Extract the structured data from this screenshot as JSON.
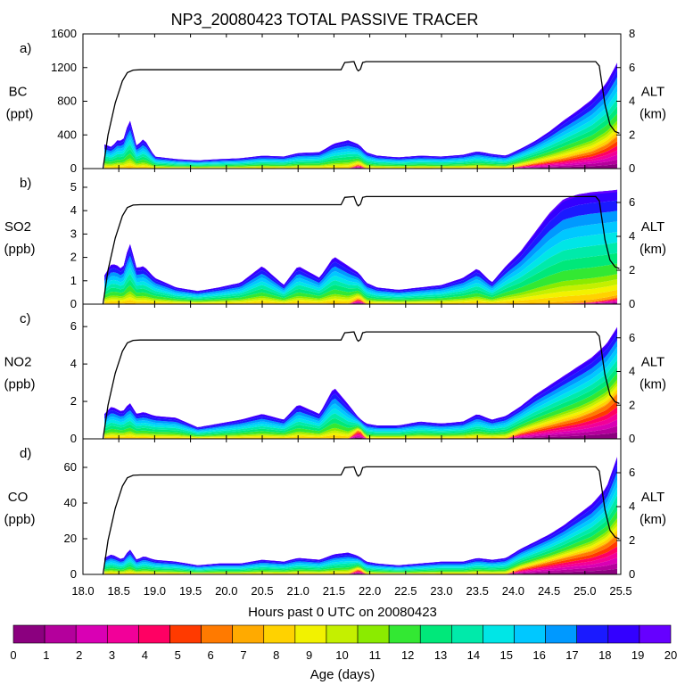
{
  "chart_data": {
    "type": "area",
    "title": "NP3_20080423 TOTAL PASSIVE TRACER",
    "xlabel": "Hours past 0 UTC on 20080423",
    "xlim": [
      18.0,
      25.5
    ],
    "xticks": [
      18.0,
      18.5,
      19.0,
      19.5,
      20.0,
      20.5,
      21.0,
      21.5,
      22.0,
      22.5,
      23.0,
      23.5,
      24.0,
      24.5,
      25.0,
      25.5
    ],
    "altitude": {
      "label": "ALT",
      "unit": "(km)",
      "ylim": [
        0,
        8
      ],
      "x": [
        18.28,
        18.35,
        18.45,
        18.55,
        18.62,
        18.7,
        18.8,
        19.0,
        21.6,
        21.65,
        21.78,
        21.82,
        21.84,
        21.87,
        21.9,
        21.95,
        25.15,
        25.2,
        25.28,
        25.35,
        25.42,
        25.48
      ],
      "y": [
        0.0,
        2.0,
        3.9,
        5.2,
        5.7,
        5.85,
        5.87,
        5.87,
        5.87,
        6.3,
        6.35,
        5.9,
        5.8,
        5.9,
        6.3,
        6.35,
        6.35,
        6.1,
        3.8,
        2.6,
        2.2,
        2.1
      ]
    },
    "panels": [
      {
        "letter": "a)",
        "name": "BC",
        "unit": "(ppt)",
        "ylim": [
          0,
          1600
        ],
        "yticks": [
          0,
          400,
          800,
          1200,
          1600
        ],
        "alt_ticks": [
          0,
          2,
          4,
          6,
          8
        ],
        "series_x": [
          18.3,
          18.4,
          18.5,
          18.55,
          18.65,
          18.75,
          18.85,
          19.0,
          19.3,
          19.6,
          19.9,
          20.2,
          20.5,
          20.8,
          21.0,
          21.3,
          21.5,
          21.7,
          21.85,
          21.95,
          22.1,
          22.4,
          22.7,
          23.0,
          23.3,
          23.5,
          23.7,
          23.9,
          24.1,
          24.3,
          24.5,
          24.7,
          24.9,
          25.1,
          25.3,
          25.45
        ],
        "total": [
          280,
          250,
          350,
          300,
          580,
          260,
          350,
          140,
          110,
          95,
          110,
          120,
          150,
          140,
          180,
          190,
          290,
          330,
          280,
          190,
          150,
          130,
          150,
          140,
          160,
          200,
          170,
          150,
          230,
          320,
          430,
          560,
          680,
          810,
          1000,
          1240
        ],
        "young": [
          0,
          0,
          0,
          0,
          0,
          0,
          0,
          0,
          0,
          0,
          0,
          0,
          0,
          0,
          0,
          0,
          0,
          0,
          50,
          0,
          0,
          0,
          0,
          0,
          0,
          0,
          0,
          0,
          30,
          60,
          90,
          120,
          160,
          200,
          280,
          380
        ]
      },
      {
        "letter": "b)",
        "name": "SO2",
        "unit": "(ppb)",
        "ylim": [
          0,
          5.8
        ],
        "yticks": [
          0,
          1,
          2,
          3,
          4,
          5
        ],
        "alt_ticks": [
          0,
          2,
          4,
          6
        ],
        "series_x": [
          18.3,
          18.4,
          18.5,
          18.55,
          18.65,
          18.75,
          18.85,
          19.0,
          19.3,
          19.6,
          19.9,
          20.2,
          20.5,
          20.8,
          21.0,
          21.3,
          21.5,
          21.7,
          21.85,
          21.95,
          22.1,
          22.4,
          22.7,
          23.0,
          23.3,
          23.5,
          23.7,
          23.9,
          24.1,
          24.3,
          24.5,
          24.7,
          24.9,
          25.1,
          25.3,
          25.45
        ],
        "total": [
          1.2,
          1.7,
          1.6,
          1.4,
          2.6,
          1.5,
          1.6,
          1.1,
          0.7,
          0.55,
          0.7,
          0.9,
          1.6,
          0.8,
          1.6,
          1.1,
          2.0,
          1.6,
          1.3,
          0.9,
          0.7,
          0.6,
          0.7,
          0.8,
          1.1,
          1.5,
          0.9,
          1.6,
          2.2,
          3.0,
          3.8,
          4.4,
          4.6,
          4.7,
          4.75,
          4.8
        ],
        "young": [
          0,
          0,
          0,
          0,
          0,
          0,
          0,
          0,
          0,
          0,
          0,
          0,
          0,
          0,
          0,
          0,
          0,
          0,
          0.25,
          0,
          0,
          0,
          0,
          0,
          0,
          0,
          0,
          0,
          0,
          0,
          0,
          0.02,
          0.05,
          0.1,
          0.2,
          0.3
        ]
      },
      {
        "letter": "c)",
        "name": "NO2",
        "unit": "(ppb)",
        "ylim": [
          0,
          7.2
        ],
        "yticks": [
          0,
          2,
          4,
          6
        ],
        "alt_ticks": [
          0,
          2,
          4,
          6
        ],
        "series_x": [
          18.3,
          18.4,
          18.5,
          18.55,
          18.65,
          18.75,
          18.85,
          19.0,
          19.3,
          19.6,
          19.9,
          20.2,
          20.5,
          20.8,
          21.0,
          21.3,
          21.5,
          21.7,
          21.85,
          21.95,
          22.1,
          22.4,
          22.7,
          23.0,
          23.3,
          23.5,
          23.7,
          23.9,
          24.1,
          24.3,
          24.5,
          24.7,
          24.9,
          25.1,
          25.3,
          25.45
        ],
        "total": [
          1.3,
          1.7,
          1.5,
          1.4,
          1.9,
          1.3,
          1.4,
          1.2,
          1.1,
          0.6,
          0.8,
          1.0,
          1.3,
          1.0,
          1.8,
          1.3,
          2.7,
          1.8,
          1.1,
          0.8,
          0.7,
          0.7,
          0.9,
          0.8,
          0.9,
          1.3,
          1.0,
          1.2,
          1.7,
          2.3,
          2.8,
          3.3,
          3.8,
          4.3,
          5.0,
          5.9
        ],
        "young": [
          0,
          0,
          0,
          0,
          0,
          0,
          0,
          0,
          0,
          0,
          0,
          0,
          0,
          0,
          0,
          0,
          0,
          0,
          0.5,
          0,
          0,
          0,
          0,
          0,
          0,
          0,
          0,
          0,
          0.3,
          0.5,
          0.7,
          0.9,
          1.1,
          1.4,
          1.8,
          2.4
        ]
      },
      {
        "letter": "d)",
        "name": "CO",
        "unit": "(ppb)",
        "ylim": [
          0,
          76
        ],
        "yticks": [
          0,
          20,
          40,
          60
        ],
        "alt_ticks": [
          0,
          2,
          4,
          6
        ],
        "series_x": [
          18.3,
          18.4,
          18.5,
          18.55,
          18.65,
          18.75,
          18.85,
          19.0,
          19.3,
          19.6,
          19.9,
          20.2,
          20.5,
          20.8,
          21.0,
          21.3,
          21.5,
          21.7,
          21.85,
          21.95,
          22.1,
          22.4,
          22.7,
          23.0,
          23.3,
          23.5,
          23.7,
          23.9,
          24.1,
          24.3,
          24.5,
          24.7,
          24.9,
          25.1,
          25.3,
          25.45
        ],
        "total": [
          9,
          11,
          9,
          8,
          14,
          8,
          10,
          8,
          7,
          5,
          6,
          6,
          8,
          7,
          9,
          8,
          11,
          12,
          10,
          7,
          6,
          5,
          6,
          7,
          7,
          9,
          8,
          9,
          14,
          18,
          22,
          27,
          33,
          39,
          48,
          65
        ],
        "young": [
          0,
          0,
          0,
          0,
          0,
          0,
          0,
          0,
          0,
          0,
          0,
          0,
          0,
          0,
          0,
          0,
          0,
          0,
          3,
          0,
          0,
          0,
          0,
          0,
          0,
          0,
          0,
          0,
          3,
          5,
          7,
          9,
          11,
          13,
          17,
          22
        ]
      }
    ],
    "colorbar": {
      "label": "Age (days)",
      "ticks": [
        0,
        1,
        2,
        3,
        4,
        5,
        6,
        7,
        8,
        9,
        10,
        11,
        12,
        13,
        14,
        15,
        16,
        17,
        18,
        19,
        20
      ],
      "colors": [
        "#8B007F",
        "#B4009C",
        "#D900B4",
        "#F20099",
        "#FF0063",
        "#FF3A00",
        "#FF7A00",
        "#FFAA00",
        "#FFD200",
        "#F2F200",
        "#C4F000",
        "#8BEB00",
        "#33E833",
        "#00E87A",
        "#00EAAA",
        "#00E6E6",
        "#00C8FF",
        "#0099FF",
        "#1A1AFF",
        "#3300FF",
        "#6600FF"
      ]
    }
  }
}
